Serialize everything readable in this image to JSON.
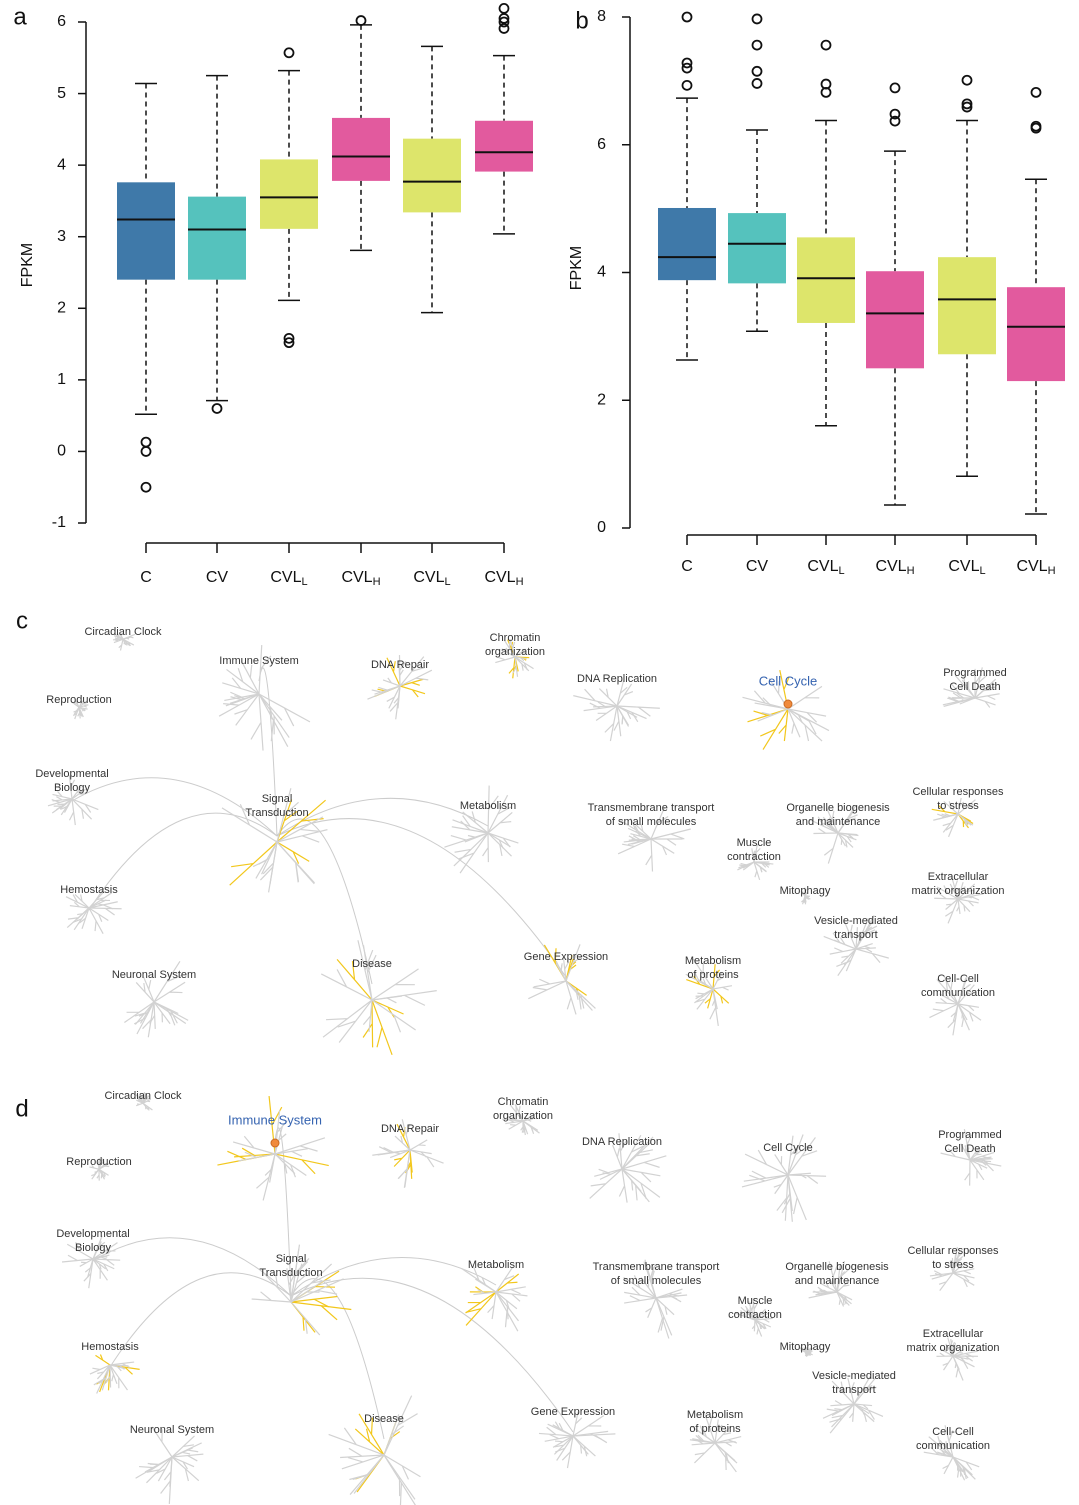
{
  "chart_data": [
    {
      "type": "box",
      "panel_label": "a",
      "ylabel": "FPKM",
      "categories": [
        "C",
        "CV",
        "CVLL",
        "CVLH",
        "CVLL",
        "CVLH"
      ],
      "colors": [
        "#3f79a9",
        "#55c2bd",
        "#dde56b",
        "#e25a9e",
        "#dde56b",
        "#e25a9e"
      ],
      "ylim": [
        -1,
        6
      ],
      "yticks": [
        -1,
        0,
        1,
        2,
        3,
        4,
        5,
        6
      ],
      "boxes": [
        {
          "min": 0.52,
          "q1": 2.4,
          "median": 3.24,
          "q3": 3.76,
          "max": 5.14,
          "outliers": [
            0.13,
            0.0,
            -0.5
          ]
        },
        {
          "min": 0.71,
          "q1": 2.4,
          "median": 3.1,
          "q3": 3.56,
          "max": 5.25,
          "outliers": [
            0.6
          ]
        },
        {
          "min": 2.11,
          "q1": 3.11,
          "median": 3.55,
          "q3": 4.08,
          "max": 5.32,
          "outliers": [
            5.57,
            1.58,
            1.52
          ]
        },
        {
          "min": 2.81,
          "q1": 3.78,
          "median": 4.12,
          "q3": 4.66,
          "max": 5.96,
          "outliers": [
            6.02
          ]
        },
        {
          "min": 1.94,
          "q1": 3.34,
          "median": 3.77,
          "q3": 4.37,
          "max": 5.66,
          "outliers": []
        },
        {
          "min": 3.04,
          "q1": 3.91,
          "median": 4.18,
          "q3": 4.62,
          "max": 5.53,
          "outliers": [
            6.19,
            6.05,
            6.0,
            5.91
          ]
        }
      ]
    },
    {
      "type": "box",
      "panel_label": "b",
      "ylabel": "FPKM",
      "categories": [
        "C",
        "CV",
        "CVLL",
        "CVLH",
        "CVLL",
        "CVLH"
      ],
      "colors": [
        "#3f79a9",
        "#55c2bd",
        "#dde56b",
        "#e25a9e",
        "#dde56b",
        "#e25a9e"
      ],
      "ylim": [
        0,
        8
      ],
      "yticks": [
        0,
        2,
        4,
        6,
        8
      ],
      "boxes": [
        {
          "min": 2.63,
          "q1": 3.88,
          "median": 4.24,
          "q3": 5.01,
          "max": 6.73,
          "outliers": [
            8.0,
            7.28,
            7.2,
            6.93
          ]
        },
        {
          "min": 3.08,
          "q1": 3.83,
          "median": 4.45,
          "q3": 4.93,
          "max": 6.23,
          "outliers": [
            7.97,
            7.56,
            7.15,
            6.96
          ]
        },
        {
          "min": 1.6,
          "q1": 3.21,
          "median": 3.91,
          "q3": 4.55,
          "max": 6.38,
          "outliers": [
            7.56,
            6.95,
            6.82
          ]
        },
        {
          "min": 0.36,
          "q1": 2.5,
          "median": 3.36,
          "q3": 4.02,
          "max": 5.9,
          "outliers": [
            6.89,
            6.48,
            6.37
          ]
        },
        {
          "min": 0.81,
          "q1": 2.72,
          "median": 3.58,
          "q3": 4.24,
          "max": 6.38,
          "outliers": [
            7.01,
            6.64,
            6.59
          ]
        },
        {
          "min": 0.22,
          "q1": 2.3,
          "median": 3.15,
          "q3": 3.77,
          "max": 5.46,
          "outliers": [
            6.82,
            6.29,
            6.26
          ]
        }
      ]
    }
  ],
  "diagrams": [
    {
      "panel_label": "c",
      "highlight_color": "#3563b0",
      "nodes": [
        {
          "lines": [
            "Circadian Clock"
          ]
        },
        {
          "lines": [
            "Immune System"
          ]
        },
        {
          "lines": [
            "DNA Repair"
          ]
        },
        {
          "lines": [
            "Chromatin",
            "organization"
          ]
        },
        {
          "lines": [
            "DNA Replication"
          ]
        },
        {
          "lines": [
            "Cell Cycle"
          ],
          "highlight": true
        },
        {
          "lines": [
            "Programmed",
            "Cell Death"
          ]
        },
        {
          "lines": [
            "Reproduction"
          ]
        },
        {
          "lines": [
            "Developmental",
            "Biology"
          ]
        },
        {
          "lines": [
            "Signal",
            "Transduction"
          ]
        },
        {
          "lines": [
            "Metabolism"
          ]
        },
        {
          "lines": [
            "Transmembrane transport",
            "of small molecules"
          ]
        },
        {
          "lines": [
            "Organelle biogenesis",
            "and maintenance"
          ]
        },
        {
          "lines": [
            "Cellular responses",
            "to stress"
          ]
        },
        {
          "lines": [
            "Muscle",
            "contraction"
          ]
        },
        {
          "lines": [
            "Hemostasis"
          ]
        },
        {
          "lines": [
            "Mitophagy"
          ]
        },
        {
          "lines": [
            "Extracellular",
            "matrix organization"
          ]
        },
        {
          "lines": [
            "Vesicle-mediated",
            "transport"
          ]
        },
        {
          "lines": [
            "Neuronal System"
          ]
        },
        {
          "lines": [
            "Disease"
          ]
        },
        {
          "lines": [
            "Gene Expression"
          ]
        },
        {
          "lines": [
            "Metabolism",
            "of proteins"
          ]
        },
        {
          "lines": [
            "Cell-Cell",
            "communication"
          ]
        }
      ]
    },
    {
      "panel_label": "d",
      "highlight_color": "#3563b0",
      "nodes": [
        {
          "lines": [
            "Circadian Clock"
          ]
        },
        {
          "lines": [
            "Immune System"
          ],
          "highlight": true
        },
        {
          "lines": [
            "DNA Repair"
          ]
        },
        {
          "lines": [
            "Chromatin",
            "organization"
          ]
        },
        {
          "lines": [
            "DNA Replication"
          ]
        },
        {
          "lines": [
            "Cell Cycle"
          ]
        },
        {
          "lines": [
            "Programmed",
            "Cell Death"
          ]
        },
        {
          "lines": [
            "Reproduction"
          ]
        },
        {
          "lines": [
            "Developmental",
            "Biology"
          ]
        },
        {
          "lines": [
            "Signal",
            "Transduction"
          ]
        },
        {
          "lines": [
            "Metabolism"
          ]
        },
        {
          "lines": [
            "Transmembrane transport",
            "of small molecules"
          ]
        },
        {
          "lines": [
            "Organelle biogenesis",
            "and maintenance"
          ]
        },
        {
          "lines": [
            "Cellular responses",
            "to stress"
          ]
        },
        {
          "lines": [
            "Muscle",
            "contraction"
          ]
        },
        {
          "lines": [
            "Hemostasis"
          ]
        },
        {
          "lines": [
            "Mitophagy"
          ]
        },
        {
          "lines": [
            "Extracellular",
            "matrix organization"
          ]
        },
        {
          "lines": [
            "Vesicle-mediated",
            "transport"
          ]
        },
        {
          "lines": [
            "Neuronal System"
          ]
        },
        {
          "lines": [
            "Disease"
          ]
        },
        {
          "lines": [
            "Gene Expression"
          ]
        },
        {
          "lines": [
            "Metabolism",
            "of proteins"
          ]
        },
        {
          "lines": [
            "Cell-Cell",
            "communication"
          ]
        }
      ]
    }
  ]
}
